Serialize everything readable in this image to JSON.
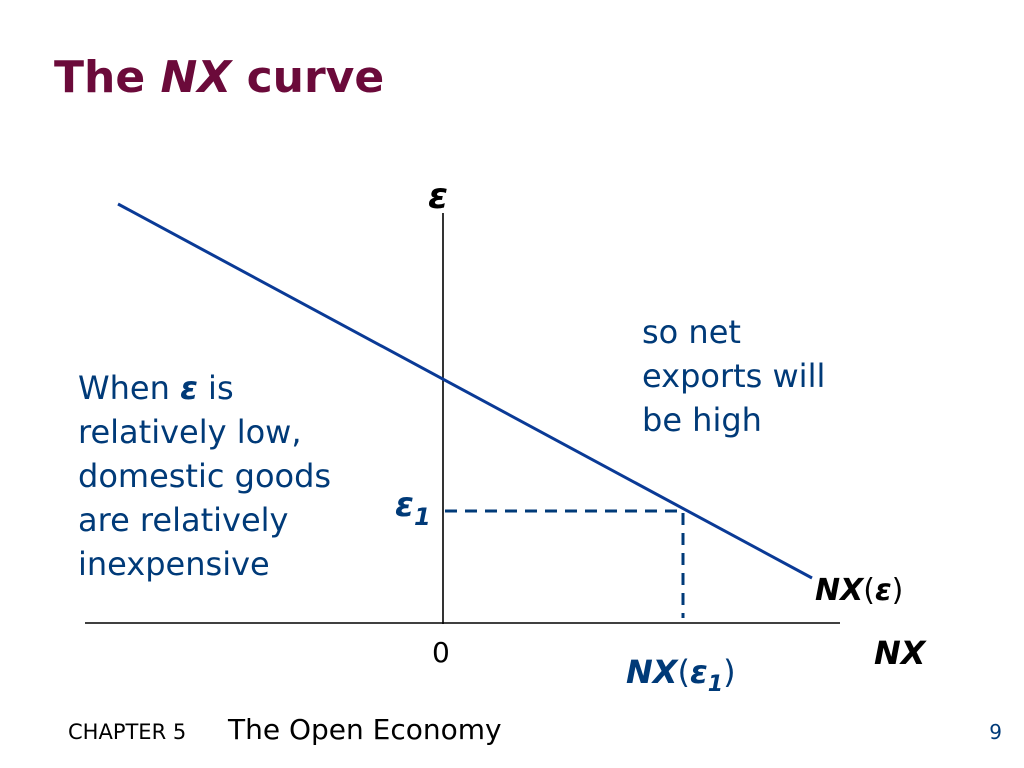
{
  "slide": {
    "title_pre": "The ",
    "title_em": "NX",
    "title_post": " curve"
  },
  "diagram": {
    "y_axis_label": "ε",
    "x_axis_label": "NX",
    "origin_label": "0",
    "eps1_main": "ε",
    "eps1_sub": "1",
    "curve_label_main": "NX",
    "curve_label_open": "(",
    "curve_label_eps": "ε",
    "curve_label_close": ")",
    "nx1_label_main": "NX",
    "nx1_label_open": "(",
    "nx1_label_eps": "ε",
    "nx1_label_sub": "1",
    "nx1_label_close": ")",
    "colors": {
      "curve": "#0a3a96",
      "axes": "#000000",
      "dashes": "#003a78",
      "labels": "#003a78",
      "title": "#6b0a3a"
    }
  },
  "notes": {
    "left_part1": "When ",
    "left_eps": "ε",
    "left_part2": "  is relatively low, domestic goods are relatively inexpensive",
    "right": "so net exports will be high"
  },
  "footer": {
    "chapter": "CHAPTER 5",
    "book": "The Open Economy",
    "page": "9"
  }
}
